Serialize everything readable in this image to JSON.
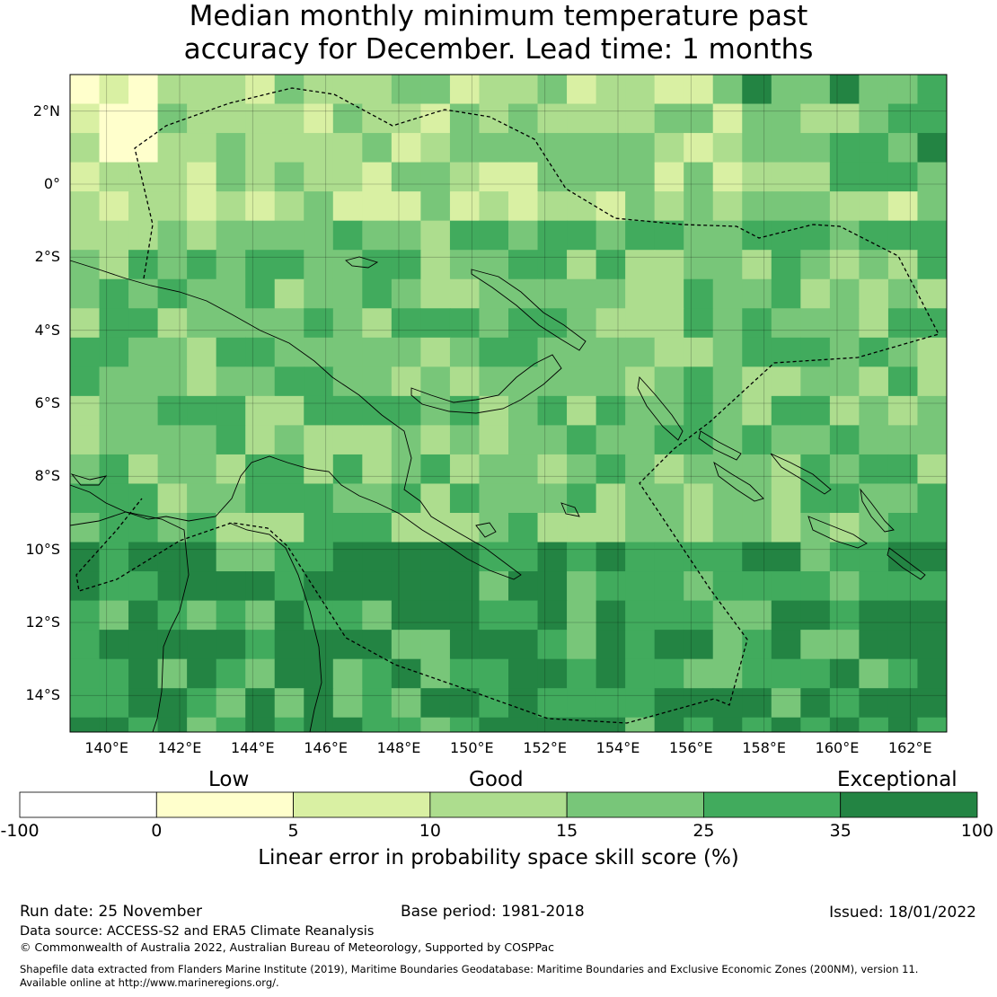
{
  "title": {
    "line1": "Median monthly minimum temperature past",
    "line2": "accuracy for December. Lead time: 1 months"
  },
  "map": {
    "lat_labels": [
      "2°N",
      "0°",
      "2°S",
      "4°S",
      "6°S",
      "8°S",
      "10°S",
      "12°S",
      "14°S"
    ],
    "lon_labels": [
      "140°E",
      "142°E",
      "144°E",
      "146°E",
      "148°E",
      "150°E",
      "152°E",
      "154°E",
      "156°E",
      "158°E",
      "160°E",
      "162°E"
    ],
    "lat_values": [
      2,
      0,
      -2,
      -4,
      -6,
      -8,
      -10,
      -12,
      -14
    ],
    "lon_values": [
      140,
      142,
      144,
      146,
      148,
      150,
      152,
      154,
      156,
      158,
      160,
      162
    ],
    "lat_range": [
      -15,
      3
    ],
    "lon_range": [
      139,
      163
    ],
    "grid": true,
    "grid_resolution_deg": 0.8
  },
  "colorbar": {
    "categories": [
      "Low",
      "Good",
      "Exceptional"
    ],
    "ticks": [
      "-100",
      "0",
      "5",
      "10",
      "15",
      "25",
      "35",
      "100"
    ],
    "colors": [
      "#ffffff",
      "#ffffcc",
      "#d9f0a3",
      "#addd8e",
      "#78c679",
      "#41ab5d",
      "#238443"
    ],
    "label": "Linear error in probability space skill score (%)"
  },
  "footer": {
    "run_date": "Run date: 25 November",
    "base_period": "Base period: 1981-2018",
    "issued": "Issued: 18/01/2022",
    "data_source": "Data source: ACCESS-S2 and ERA5 Climate Reanalysis",
    "copyright": "© Commonwealth of Australia 2022, Australian Bureau of Meteorology, Supported by COSPPac",
    "shapefile_1": "Shapefile data extracted from Flanders Marine Institute (2019), Maritime Boundaries Geodatabase: Maritime Boundaries and Exclusive Economic Zones (200NM), version 11.",
    "shapefile_2": "Available online at http://www.marineregions.org/."
  }
}
